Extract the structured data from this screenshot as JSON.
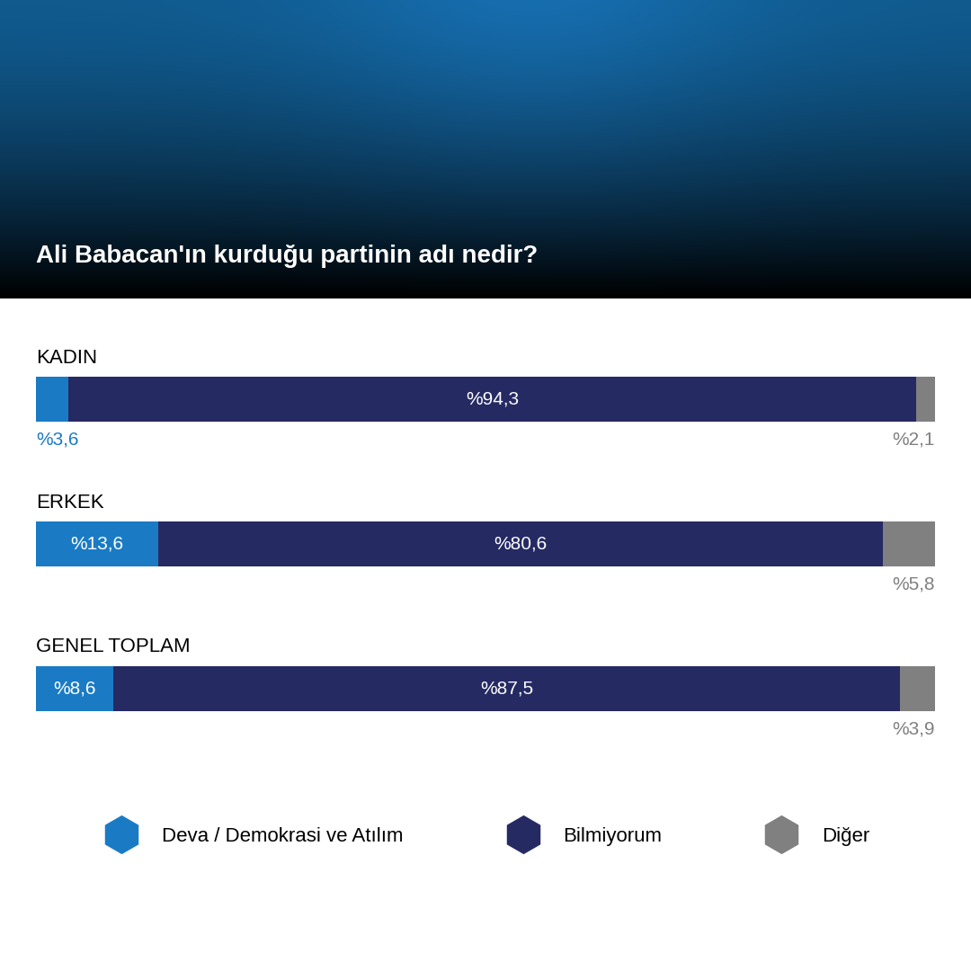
{
  "chart_data": {
    "type": "bar",
    "orientation": "horizontal",
    "stacked": true,
    "title": "Ali Babacan'ın kurduğu partinin adı nedir?",
    "categories": [
      "KADIN",
      "ERKEK",
      "GENEL TOPLAM"
    ],
    "series": [
      {
        "name": "Deva / Demokrasi ve Atılım",
        "color": "#1a7bc4",
        "values": [
          3.6,
          13.6,
          8.6
        ],
        "value_labels": [
          "%3,6",
          "%13,6",
          "%8,6"
        ]
      },
      {
        "name": "Bilmiyorum",
        "color": "#262a63",
        "values": [
          94.3,
          80.6,
          87.5
        ],
        "value_labels": [
          "%94,3",
          "%80,6",
          "%87,5"
        ]
      },
      {
        "name": "Diğer",
        "color": "#808080",
        "values": [
          2.1,
          5.8,
          3.9
        ],
        "value_labels": [
          "%2,1",
          "%5,8",
          "%3,9"
        ]
      }
    ],
    "xlim": [
      0,
      100
    ],
    "data_labels": true,
    "tick_labels": false,
    "grid": false,
    "legend": "lower center"
  }
}
